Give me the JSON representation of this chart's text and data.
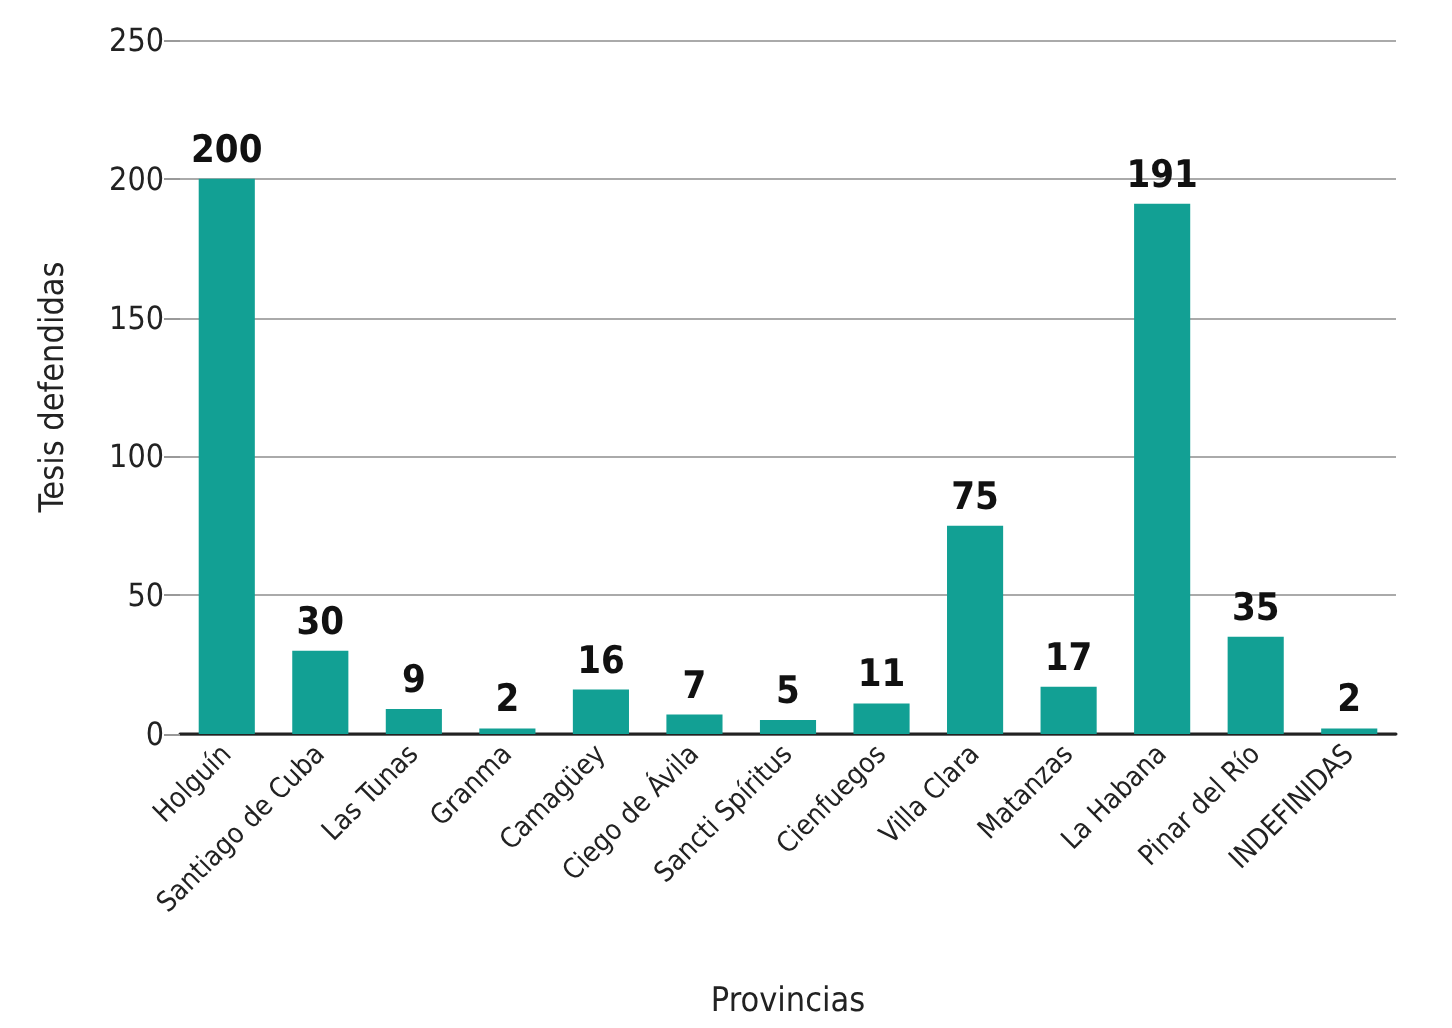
{
  "chart_data": {
    "type": "bar",
    "xlabel": "Provincias",
    "ylabel": "Tesis defendidas",
    "categories": [
      "Holguín",
      "Santiago de Cuba",
      "Las Tunas",
      "Granma",
      "Camagüey",
      "Ciego de Ávila",
      "Sancti Spíritus",
      "Cienfuegos",
      "Villa Clara",
      "Matanzas",
      "La Habana",
      "Pinar del Río",
      "INDEFINIDAS"
    ],
    "values": [
      200,
      30,
      9,
      2,
      16,
      7,
      5,
      11,
      75,
      17,
      191,
      35,
      2
    ],
    "color": "#12a094",
    "ylim": [
      0,
      250
    ],
    "yticks": [
      0,
      50,
      100,
      150,
      200,
      250
    ],
    "grid": "y",
    "data_labels": true
  }
}
